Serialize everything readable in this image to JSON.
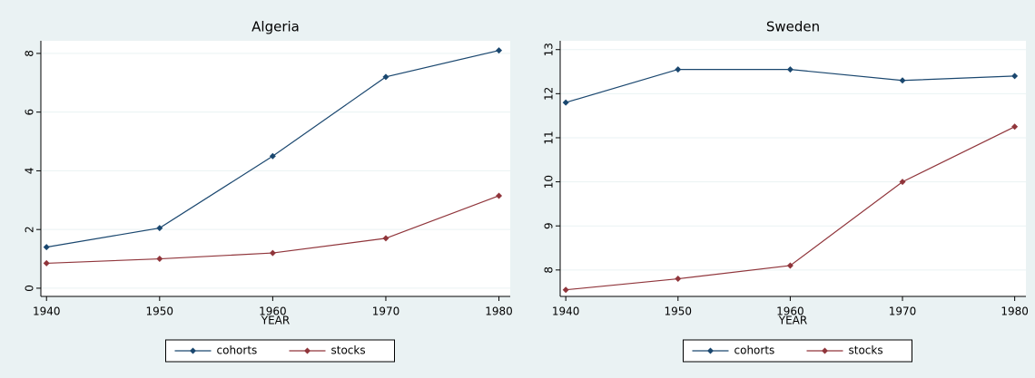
{
  "chart_data": [
    {
      "type": "line",
      "title": "Algeria",
      "xlabel": "YEAR",
      "x": [
        1940,
        1950,
        1960,
        1970,
        1980
      ],
      "series": [
        {
          "name": "cohorts",
          "color": "#1a476f",
          "values": [
            1.4,
            2.05,
            4.5,
            7.2,
            8.1
          ]
        },
        {
          "name": "stocks",
          "color": "#90353b",
          "values": [
            0.85,
            1.0,
            1.2,
            1.7,
            3.15
          ]
        }
      ],
      "xlim": [
        1939.5,
        1981
      ],
      "ylim": [
        -0.28,
        8.43
      ],
      "xticks": [
        1940,
        1950,
        1960,
        1970,
        1980
      ],
      "yticks": [
        0,
        2,
        4,
        6,
        8
      ],
      "grid": true,
      "legend": "bottom"
    },
    {
      "type": "line",
      "title": "Sweden",
      "xlabel": "YEAR",
      "x": [
        1940,
        1950,
        1960,
        1970,
        1980
      ],
      "series": [
        {
          "name": "cohorts",
          "color": "#1a476f",
          "values": [
            11.8,
            12.55,
            12.55,
            12.3,
            12.4
          ]
        },
        {
          "name": "stocks",
          "color": "#90353b",
          "values": [
            7.55,
            7.8,
            8.1,
            10.0,
            11.25
          ]
        }
      ],
      "xlim": [
        1939.5,
        1981
      ],
      "ylim": [
        7.4,
        13.2
      ],
      "xticks": [
        1940,
        1950,
        1960,
        1970,
        1980
      ],
      "yticks": [
        8,
        9,
        10,
        11,
        12,
        13
      ],
      "grid": true,
      "legend": "bottom"
    }
  ]
}
